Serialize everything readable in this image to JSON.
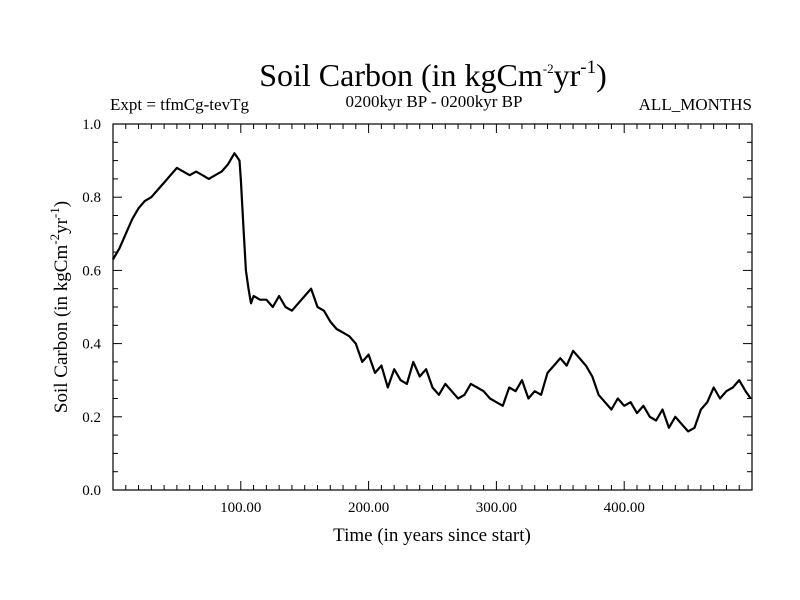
{
  "chart_data": {
    "type": "line",
    "title": {
      "base": "Soil Carbon (in kgCm",
      "exp1": "-2",
      "mid": "yr",
      "exp2": "-1",
      "close": ")"
    },
    "subtitle_left": "Expt = tfmCg-tevTg",
    "subtitle_center": "0200kyr BP - 0200kyr BP",
    "subtitle_right": "ALL_MONTHS",
    "xlabel": "Time (in years since start)",
    "ylabel": {
      "base": "Soil Carbon (in kgCm",
      "exp1": "-2",
      "mid": "yr",
      "exp2": "-1",
      "close": ")"
    },
    "xlim": [
      0,
      500
    ],
    "ylim": [
      0,
      1.0
    ],
    "x_ticks": [
      100,
      200,
      300,
      400
    ],
    "x_tick_labels": [
      "100.00",
      "200.00",
      "300.00",
      "400.00"
    ],
    "y_ticks": [
      0,
      0.2,
      0.4,
      0.6,
      0.8,
      1.0
    ],
    "y_tick_labels": [
      "0.0",
      "0.2",
      "0.4",
      "0.6",
      "0.8",
      "1.0"
    ],
    "series": [
      {
        "name": "Soil Carbon",
        "color": "#000000",
        "x": [
          0,
          5,
          10,
          15,
          20,
          25,
          30,
          35,
          40,
          45,
          50,
          55,
          60,
          65,
          70,
          75,
          80,
          85,
          90,
          95,
          97,
          99,
          100,
          102,
          104,
          106,
          108,
          110,
          115,
          120,
          125,
          130,
          135,
          140,
          145,
          150,
          155,
          160,
          165,
          170,
          175,
          180,
          185,
          190,
          195,
          200,
          205,
          210,
          215,
          220,
          225,
          230,
          235,
          240,
          245,
          250,
          255,
          260,
          265,
          270,
          275,
          280,
          285,
          290,
          295,
          300,
          305,
          310,
          315,
          320,
          325,
          330,
          335,
          340,
          345,
          350,
          355,
          360,
          365,
          370,
          375,
          380,
          385,
          390,
          395,
          400,
          405,
          410,
          415,
          420,
          425,
          430,
          435,
          440,
          445,
          450,
          455,
          460,
          465,
          470,
          475,
          480,
          485,
          490,
          495,
          499
        ],
        "y": [
          0.63,
          0.66,
          0.7,
          0.74,
          0.77,
          0.79,
          0.8,
          0.82,
          0.84,
          0.86,
          0.88,
          0.87,
          0.86,
          0.87,
          0.86,
          0.85,
          0.86,
          0.87,
          0.89,
          0.92,
          0.91,
          0.9,
          0.85,
          0.72,
          0.6,
          0.55,
          0.51,
          0.53,
          0.52,
          0.52,
          0.5,
          0.53,
          0.5,
          0.49,
          0.51,
          0.53,
          0.55,
          0.5,
          0.49,
          0.46,
          0.44,
          0.43,
          0.42,
          0.4,
          0.35,
          0.37,
          0.32,
          0.34,
          0.28,
          0.33,
          0.3,
          0.29,
          0.35,
          0.31,
          0.33,
          0.28,
          0.26,
          0.29,
          0.27,
          0.25,
          0.26,
          0.29,
          0.28,
          0.27,
          0.25,
          0.24,
          0.23,
          0.28,
          0.27,
          0.3,
          0.25,
          0.27,
          0.26,
          0.32,
          0.34,
          0.36,
          0.34,
          0.38,
          0.36,
          0.34,
          0.31,
          0.26,
          0.24,
          0.22,
          0.25,
          0.23,
          0.24,
          0.21,
          0.23,
          0.2,
          0.19,
          0.22,
          0.17,
          0.2,
          0.18,
          0.16,
          0.17,
          0.22,
          0.24,
          0.28,
          0.25,
          0.27,
          0.28,
          0.3,
          0.27,
          0.25
        ]
      }
    ]
  }
}
